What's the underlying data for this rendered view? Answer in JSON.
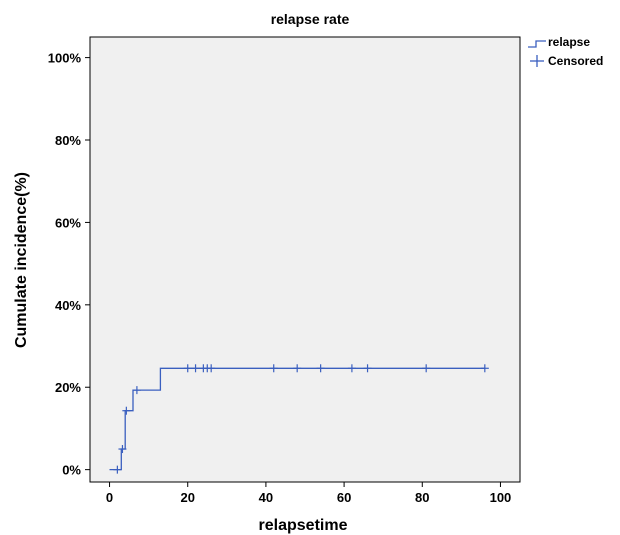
{
  "chart_data": {
    "type": "line",
    "title": "relapse rate",
    "xlabel": "relapsetime",
    "ylabel": "Cumulate incidence(%)",
    "xlim": [
      -5,
      105
    ],
    "ylim": [
      -3,
      105
    ],
    "x_ticks": [
      0,
      20,
      40,
      60,
      80,
      100
    ],
    "x_tick_labels": [
      "0",
      "20",
      "40",
      "60",
      "80",
      "100"
    ],
    "y_ticks": [
      0,
      20,
      40,
      60,
      80,
      100
    ],
    "y_tick_labels": [
      "0%",
      "20%",
      "40%",
      "60%",
      "80%",
      "100%"
    ],
    "grid": false,
    "legend_position": "top-right outside",
    "plot_background": "#f0f0f0",
    "series": [
      {
        "name": "relapse",
        "color": "#3a5fbf",
        "step_x": [
          0,
          3,
          3,
          4,
          4,
          6,
          6,
          13,
          13,
          96
        ],
        "step_y": [
          0,
          0,
          5,
          5,
          14.3,
          14.3,
          19.3,
          19.3,
          24.6,
          24.6
        ],
        "censored": [
          {
            "x": 2,
            "y": 0
          },
          {
            "x": 3.3,
            "y": 5
          },
          {
            "x": 4.3,
            "y": 14.3
          },
          {
            "x": 7,
            "y": 19.3
          },
          {
            "x": 20,
            "y": 24.6
          },
          {
            "x": 22,
            "y": 24.6
          },
          {
            "x": 24,
            "y": 24.6
          },
          {
            "x": 25,
            "y": 24.6
          },
          {
            "x": 26,
            "y": 24.6
          },
          {
            "x": 42,
            "y": 24.6
          },
          {
            "x": 48,
            "y": 24.6
          },
          {
            "x": 54,
            "y": 24.6
          },
          {
            "x": 62,
            "y": 24.6
          },
          {
            "x": 66,
            "y": 24.6
          },
          {
            "x": 81,
            "y": 24.6
          },
          {
            "x": 96,
            "y": 24.6
          }
        ]
      }
    ],
    "legend": [
      {
        "label": "relapse",
        "marker": "step-line"
      },
      {
        "label": "Censored",
        "marker": "plus"
      }
    ]
  }
}
